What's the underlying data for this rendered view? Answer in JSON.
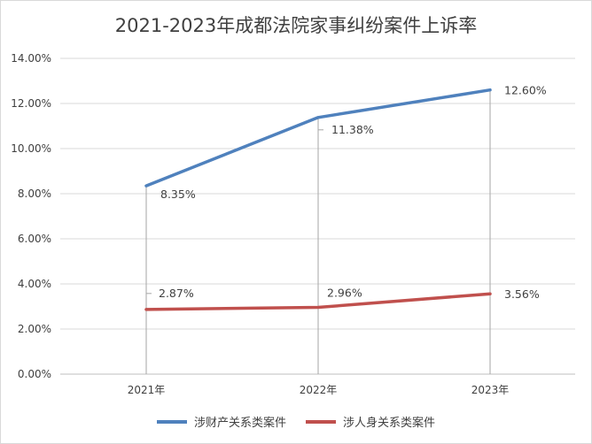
{
  "chart_data": {
    "type": "line",
    "title": "2021-2023年成都法院家事纠纷案件上诉率",
    "categories": [
      "2021年",
      "2022年",
      "2023年"
    ],
    "series": [
      {
        "name": "涉财产关系类案件",
        "values": [
          8.35,
          11.38,
          12.6
        ],
        "labels": [
          "8.35%",
          "11.38%",
          "12.60%"
        ],
        "color": "#4F81BD"
      },
      {
        "name": "涉人身关系类案件",
        "values": [
          2.87,
          2.96,
          3.56
        ],
        "labels": [
          "2.87%",
          "2.96%",
          "3.56%"
        ],
        "color": "#C0504D"
      }
    ],
    "ylim": [
      0,
      14
    ],
    "yticks": [
      "0.00%",
      "2.00%",
      "4.00%",
      "6.00%",
      "8.00%",
      "10.00%",
      "12.00%",
      "14.00%"
    ],
    "ytick_values": [
      0,
      2,
      4,
      6,
      8,
      10,
      12,
      14
    ],
    "grid": true,
    "legend": "bottom"
  }
}
